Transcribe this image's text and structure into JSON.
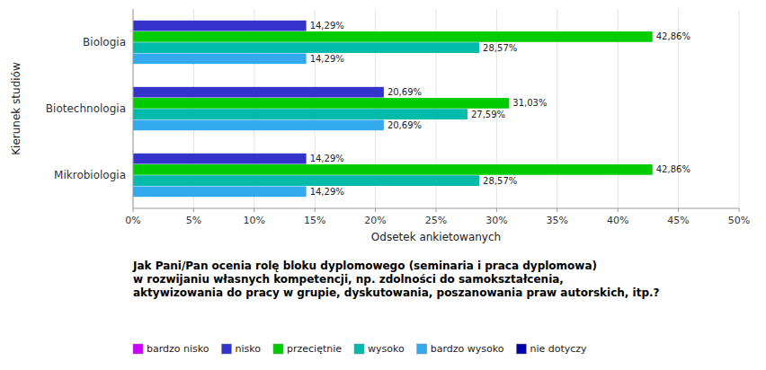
{
  "chart_data": {
    "type": "bar",
    "orientation": "horizontal",
    "categories": [
      "Biologia",
      "Biotechnologia",
      "Mikrobiologia"
    ],
    "series": [
      {
        "name": "bardzo nisko",
        "color": "#cc00ff",
        "values": [
          0,
          0,
          0
        ]
      },
      {
        "name": "nisko",
        "color": "#3333cc",
        "values": [
          14.29,
          20.69,
          14.29
        ],
        "value_labels": [
          "14,29%",
          "20,69%",
          "14,29%"
        ]
      },
      {
        "name": "przeciętnie",
        "color": "#00cc00",
        "values": [
          42.86,
          31.03,
          42.86
        ],
        "value_labels": [
          "42,86%",
          "31,03%",
          "42,86%"
        ]
      },
      {
        "name": "wysoko",
        "color": "#00bbaa",
        "values": [
          28.57,
          27.59,
          28.57
        ],
        "value_labels": [
          "28,57%",
          "27,59%",
          "28,57%"
        ]
      },
      {
        "name": "bardzo wysoko",
        "color": "#33aaee",
        "values": [
          14.29,
          20.69,
          14.29
        ],
        "value_labels": [
          "14,29%",
          "20,69%",
          "14,29%"
        ]
      },
      {
        "name": "nie dotyczy",
        "color": "#0000aa",
        "values": [
          0,
          0,
          0
        ]
      }
    ],
    "xlabel": "Odsetek ankietowanych",
    "ylabel": "Kierunek studiów",
    "xlim": [
      0,
      50
    ],
    "xticks": [
      {
        "value": 0,
        "label": "0%"
      },
      {
        "value": 5,
        "label": "5%"
      },
      {
        "value": 10,
        "label": "10%"
      },
      {
        "value": 15,
        "label": "15%"
      },
      {
        "value": 20,
        "label": "20%"
      },
      {
        "value": 25,
        "label": "25%"
      },
      {
        "value": 30,
        "label": "30%"
      },
      {
        "value": 35,
        "label": "35%"
      },
      {
        "value": 40,
        "label": "40%"
      },
      {
        "value": 45,
        "label": "45%"
      },
      {
        "value": 50,
        "label": "50%"
      }
    ],
    "annotations": [
      "Jak Pani/Pan ocenia rolę bloku dyplomowego (seminaria i praca dyplomowa)",
      "w rozwijaniu własnych kompetencji, np. zdolności do samokształcenia,",
      "aktywizowania do pracy w grupie, dyskutowania, poszanowania praw autorskich, itp.?"
    ],
    "grid": true,
    "data_labels": true,
    "legend": "bottom"
  }
}
